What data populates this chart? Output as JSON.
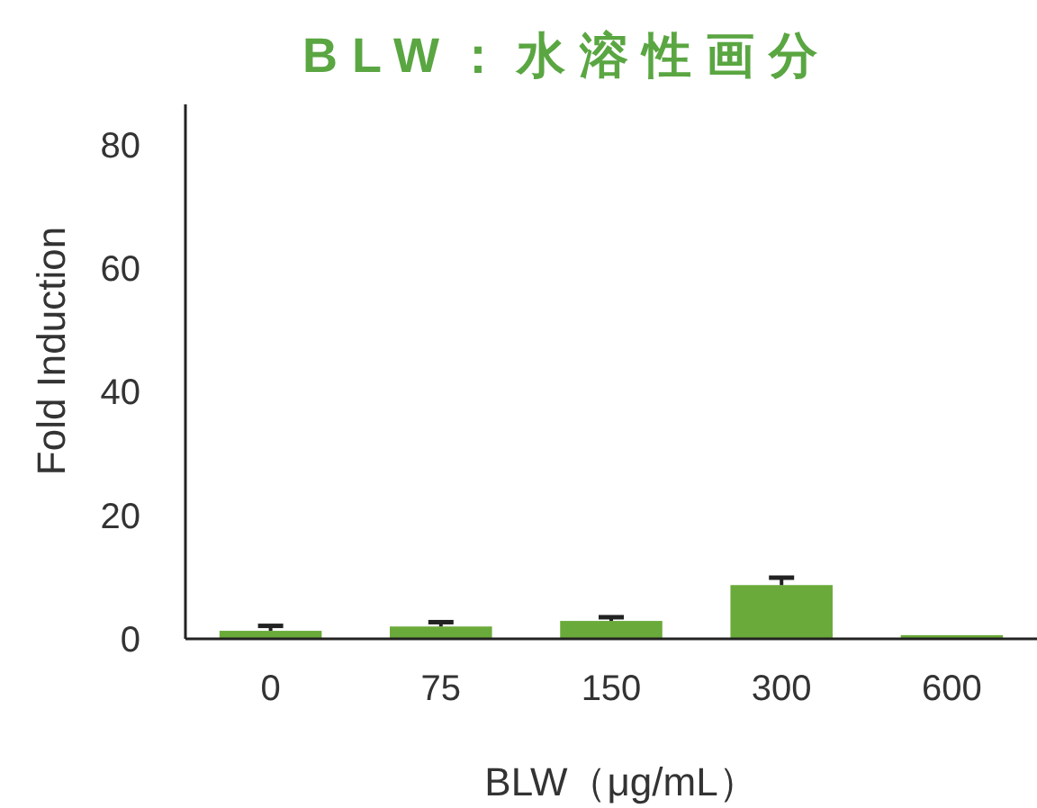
{
  "chart_data": {
    "type": "bar",
    "title": "BLW：水溶性画分",
    "xlabel": "BLW（μg/mL）",
    "ylabel": "Fold Induction",
    "categories": [
      "0",
      "75",
      "150",
      "300",
      "600"
    ],
    "values": [
      1.3,
      2.0,
      2.9,
      8.7,
      0.6
    ],
    "errors": [
      0.8,
      0.7,
      0.6,
      1.2,
      null
    ],
    "color": "#6aaa3a",
    "ylim": [
      0,
      86.5
    ],
    "yticks": [
      0,
      20,
      40,
      60,
      80
    ],
    "grid": false
  }
}
